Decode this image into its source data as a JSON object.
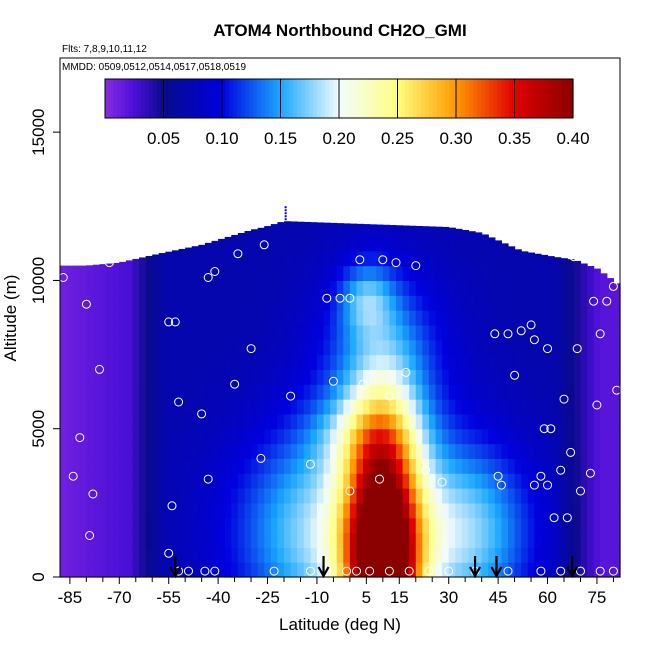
{
  "chart_data": {
    "type": "heatmap",
    "title": "ATOM4 Northbound CH2O_GMI",
    "annotations": {
      "flights": "Flts: 7,8,9,10,11,12",
      "dates": "MMDD: 0509,0512,0514,0517,0518,0519"
    },
    "xlabel": "Latitude (deg N)",
    "ylabel": "Altitude (m)",
    "xlim": [
      -88,
      82
    ],
    "ylim": [
      0,
      17500
    ],
    "x_ticks": [
      -85,
      -70,
      -55,
      -40,
      -25,
      -10,
      5,
      15,
      30,
      45,
      60,
      75
    ],
    "x_tick_labels": [
      "-85",
      "-70",
      "-55",
      "-40",
      "-25",
      "-10",
      "5",
      "15",
      "30",
      "45",
      "60",
      "75"
    ],
    "x_minor_ticks": [
      -80,
      -75,
      -65,
      -60,
      -50,
      -45,
      -35,
      -30,
      -20,
      -15,
      -5,
      0,
      10,
      20,
      25,
      35,
      40,
      50,
      55,
      65,
      70,
      80
    ],
    "y_ticks": [
      0,
      5000,
      10000,
      15000
    ],
    "y_tick_labels": [
      "0",
      "5000",
      "10000",
      "15000"
    ],
    "colorbar": {
      "min": 0.0,
      "max": 0.4,
      "ticks": [
        0.05,
        0.1,
        0.15,
        0.2,
        0.25,
        0.3,
        0.35,
        0.4
      ],
      "tick_labels": [
        "0.05",
        "0.10",
        "0.15",
        "0.20",
        "0.25",
        "0.30",
        "0.35",
        "0.40"
      ],
      "stops": [
        {
          "v": 0.0,
          "color": "#8a2be2"
        },
        {
          "v": 0.025,
          "color": "#4b0fd8"
        },
        {
          "v": 0.05,
          "color": "#0a0a8c"
        },
        {
          "v": 0.1,
          "color": "#0000e0"
        },
        {
          "v": 0.15,
          "color": "#1aa7ff"
        },
        {
          "v": 0.2,
          "color": "#f2fbff"
        },
        {
          "v": 0.25,
          "color": "#ffff80"
        },
        {
          "v": 0.3,
          "color": "#ff9900"
        },
        {
          "v": 0.35,
          "color": "#e00000"
        },
        {
          "v": 0.4,
          "color": "#8b0000"
        }
      ]
    },
    "domain_bounds": {
      "lat": [
        -88,
        -80,
        -70,
        -58,
        -45,
        -36,
        -30,
        -26,
        -20,
        30,
        40,
        52,
        62,
        68,
        75,
        80,
        82
      ],
      "top_alt": [
        10500,
        10500,
        10600,
        10900,
        11200,
        11500,
        11700,
        11800,
        12000,
        11800,
        11600,
        11000,
        10800,
        10700,
        10400,
        10000,
        9800
      ]
    },
    "field": {
      "background": {
        "x": [
          -88,
          -75,
          -62,
          -55
        ],
        "value": [
          0.01,
          0.02,
          0.03,
          0.05
        ]
      },
      "components": [
        {
          "lat": 10,
          "alt": 0,
          "dlat": 11,
          "dalt": 5200,
          "amp": 0.37
        },
        {
          "lat": 5,
          "alt": 4800,
          "dlat": 16,
          "dalt": 1400,
          "amp": 0.05
        },
        {
          "lat": -5,
          "alt": 1500,
          "dlat": 28,
          "dalt": 3500,
          "amp": 0.12
        },
        {
          "lat": 35,
          "alt": 1500,
          "dlat": 20,
          "dalt": 3000,
          "amp": 0.1
        },
        {
          "lat": 10,
          "alt": 7500,
          "dlat": 20,
          "dalt": 3000,
          "amp": 0.06
        },
        {
          "lat": 5,
          "alt": 9400,
          "dlat": 8,
          "dalt": 1200,
          "amp": 0.06
        }
      ],
      "base": 0.07
    },
    "observations": {
      "points": [
        [
          -87,
          10100
        ],
        [
          -84,
          3400
        ],
        [
          -82,
          4700
        ],
        [
          -80,
          9200
        ],
        [
          -79,
          1400
        ],
        [
          -78,
          2800
        ],
        [
          -76,
          7000
        ],
        [
          -73,
          10600
        ],
        [
          -55,
          8600
        ],
        [
          -53,
          8600
        ],
        [
          -54,
          2400
        ],
        [
          -52,
          5900
        ],
        [
          -45,
          5500
        ],
        [
          -43,
          10100
        ],
        [
          -43,
          3300
        ],
        [
          -41,
          10300
        ],
        [
          -35,
          6500
        ],
        [
          -34,
          10900
        ],
        [
          -30,
          7700
        ],
        [
          -27,
          4000
        ],
        [
          -26,
          11200
        ],
        [
          -18,
          6100
        ],
        [
          -12,
          3800
        ],
        [
          -7,
          9400
        ],
        [
          -5,
          6600
        ],
        [
          -3,
          9400
        ],
        [
          0,
          9400
        ],
        [
          0,
          2900
        ],
        [
          3,
          10700
        ],
        [
          4,
          6500
        ],
        [
          9,
          3300
        ],
        [
          10,
          10700
        ],
        [
          12,
          6100
        ],
        [
          14,
          10600
        ],
        [
          17,
          6900
        ],
        [
          20,
          10500
        ],
        [
          23,
          3600
        ],
        [
          28,
          3200
        ],
        [
          44,
          8200
        ],
        [
          45,
          3400
        ],
        [
          46,
          3100
        ],
        [
          47,
          11600
        ],
        [
          48,
          8200
        ],
        [
          50,
          6800
        ],
        [
          52,
          8300
        ],
        [
          54,
          11200
        ],
        [
          55,
          8500
        ],
        [
          56,
          8000
        ],
        [
          56,
          3100
        ],
        [
          58,
          3400
        ],
        [
          59,
          5000
        ],
        [
          60,
          3100
        ],
        [
          60,
          7700
        ],
        [
          61,
          5000
        ],
        [
          62,
          2000
        ],
        [
          64,
          3600
        ],
        [
          65,
          6000
        ],
        [
          66,
          2000
        ],
        [
          67,
          4200
        ],
        [
          68,
          10800
        ],
        [
          69,
          7700
        ],
        [
          70,
          2900
        ],
        [
          72,
          10800
        ],
        [
          73,
          3500
        ],
        [
          74,
          9300
        ],
        [
          75,
          5800
        ],
        [
          76,
          8200
        ],
        [
          78,
          9300
        ],
        [
          80,
          9800
        ],
        [
          81,
          6300
        ],
        [
          -55,
          800
        ],
        [
          -52,
          200
        ],
        [
          -49,
          200
        ],
        [
          -44,
          200
        ],
        [
          -41,
          200
        ],
        [
          -23,
          200
        ],
        [
          -12,
          200
        ],
        [
          -7,
          200
        ],
        [
          -1,
          200
        ],
        [
          2,
          200
        ],
        [
          6,
          200
        ],
        [
          12,
          200
        ],
        [
          18,
          200
        ],
        [
          24,
          200
        ],
        [
          30,
          200
        ],
        [
          38,
          200
        ],
        [
          48,
          200
        ],
        [
          58,
          200
        ],
        [
          64,
          200
        ],
        [
          70,
          200
        ],
        [
          76,
          200
        ],
        [
          80,
          200
        ]
      ]
    },
    "arrows": [
      -53,
      -8,
      38,
      44.5,
      67.5
    ],
    "top_marker": {
      "lat": -19.5,
      "alt": 12500
    }
  }
}
